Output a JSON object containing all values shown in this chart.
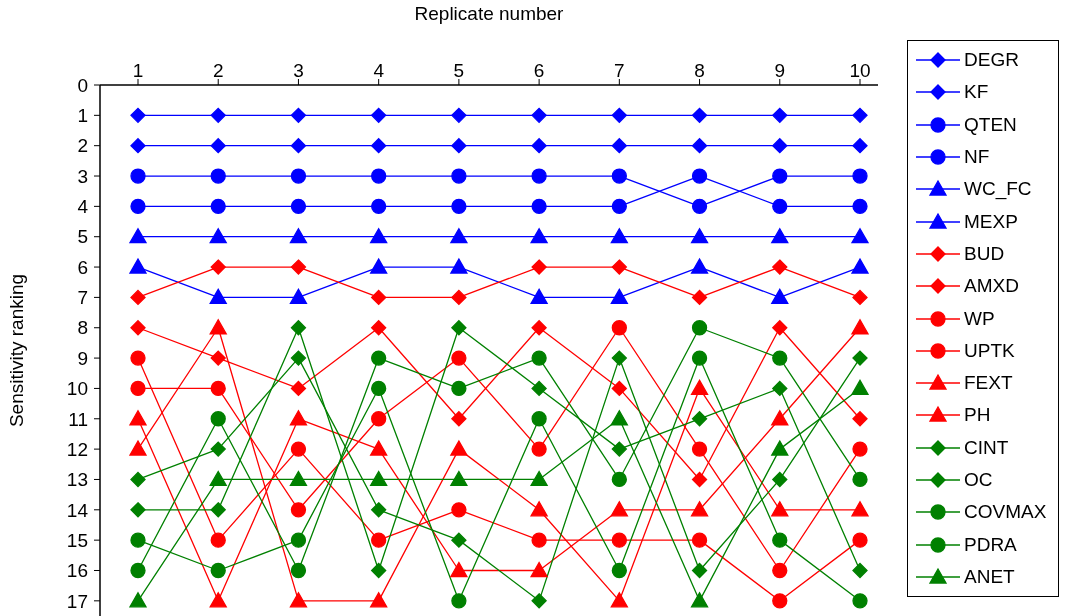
{
  "chart_data": {
    "type": "line",
    "xlabel": "Replicate number",
    "ylabel": "Sensitivity ranking",
    "categories": [
      "1",
      "2",
      "3",
      "4",
      "5",
      "6",
      "7",
      "8",
      "9",
      "10"
    ],
    "ylim": [
      17.5,
      0
    ],
    "yticks": [
      0,
      1,
      2,
      3,
      4,
      5,
      6,
      7,
      8,
      9,
      10,
      11,
      12,
      13,
      14,
      15,
      16,
      17
    ],
    "legend": "right",
    "line_style": "solid",
    "series": [
      {
        "name": "DEGR",
        "color": "#0000ff",
        "marker": "diamond",
        "values": [
          1,
          1,
          1,
          1,
          1,
          1,
          1,
          1,
          1,
          1
        ]
      },
      {
        "name": "KF",
        "color": "#0000ff",
        "marker": "diamond",
        "values": [
          2,
          2,
          2,
          2,
          2,
          2,
          2,
          2,
          2,
          2
        ]
      },
      {
        "name": "QTEN",
        "color": "#0000ff",
        "marker": "circle",
        "values": [
          3,
          3,
          3,
          3,
          3,
          3,
          3,
          4,
          3,
          3
        ]
      },
      {
        "name": "NF",
        "color": "#0000ff",
        "marker": "circle",
        "values": [
          4,
          4,
          4,
          4,
          4,
          4,
          4,
          3,
          4,
          4
        ]
      },
      {
        "name": "WC_FC",
        "color": "#0000ff",
        "marker": "triangle",
        "values": [
          5,
          5,
          5,
          5,
          5,
          5,
          5,
          5,
          5,
          5
        ]
      },
      {
        "name": "MEXP",
        "color": "#0000ff",
        "marker": "triangle",
        "values": [
          6,
          7,
          7,
          6,
          6,
          7,
          7,
          6,
          7,
          6
        ]
      },
      {
        "name": "BUD",
        "color": "#ff0000",
        "marker": "diamond",
        "values": [
          7,
          6,
          6,
          7,
          7,
          6,
          6,
          7,
          6,
          7
        ]
      },
      {
        "name": "AMXD",
        "color": "#ff0000",
        "marker": "diamond",
        "values": [
          8,
          9,
          10,
          8,
          11,
          8,
          10,
          13,
          8,
          11
        ]
      },
      {
        "name": "WP",
        "color": "#ff0000",
        "marker": "circle",
        "values": [
          9,
          15,
          12,
          15,
          14,
          15,
          15,
          15,
          17,
          15
        ]
      },
      {
        "name": "UPTK",
        "color": "#ff0000",
        "marker": "circle",
        "values": [
          10,
          10,
          14,
          11,
          9,
          12,
          8,
          12,
          16,
          12
        ]
      },
      {
        "name": "FEXT",
        "color": "#ff0000",
        "marker": "triangle",
        "values": [
          11,
          17,
          11,
          12,
          16,
          16,
          14,
          14,
          11,
          8
        ]
      },
      {
        "name": "PH",
        "color": "#ff0000",
        "marker": "triangle",
        "values": [
          12,
          8,
          17,
          17,
          12,
          14,
          17,
          10,
          14,
          14
        ]
      },
      {
        "name": "CINT",
        "color": "#008000",
        "marker": "diamond",
        "values": [
          13,
          12,
          9,
          14,
          15,
          17,
          9,
          16,
          13,
          9
        ]
      },
      {
        "name": "OC",
        "color": "#008000",
        "marker": "diamond",
        "values": [
          14,
          14,
          8,
          16,
          8,
          10,
          12,
          11,
          10,
          16
        ]
      },
      {
        "name": "COVMAX",
        "color": "#008000",
        "marker": "circle",
        "values": [
          15,
          16,
          15,
          10,
          17,
          11,
          16,
          9,
          15,
          17
        ]
      },
      {
        "name": "PDRA",
        "color": "#008000",
        "marker": "circle",
        "values": [
          16,
          11,
          16,
          9,
          10,
          9,
          13,
          8,
          9,
          13
        ]
      },
      {
        "name": "ANET",
        "color": "#008000",
        "marker": "triangle",
        "values": [
          17,
          13,
          13,
          13,
          13,
          13,
          11,
          17,
          12,
          10
        ]
      }
    ]
  }
}
